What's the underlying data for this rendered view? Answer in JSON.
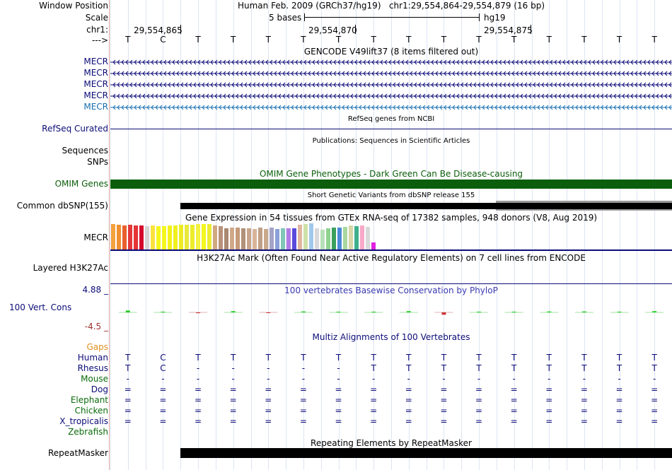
{
  "header": {
    "window_position_label": "Window Position",
    "assembly": "Human Feb. 2009 (GRCh37/hg19)",
    "position": "chr1:29,554,864-29,554,879 (16 bp)",
    "scale_label": "Scale",
    "scale_text": "5 bases",
    "scale_db": "hg19",
    "chrom_label": "chr1:",
    "coord_ticks": [
      "29,554,865",
      "29,554,870",
      "29,554,875"
    ],
    "strand_label": "--->"
  },
  "bases": [
    "T",
    "C",
    "T",
    "T",
    "T",
    "T",
    "T",
    "T",
    "T",
    "T",
    "T",
    "T",
    "T",
    "T",
    "T",
    "T"
  ],
  "gencode": {
    "title": "GENCODE V49lift37 (8 items filtered out)",
    "items": [
      "MECR",
      "MECR",
      "MECR",
      "MECR",
      "MECR"
    ],
    "color": "#0c0c78",
    "last_color": "#1a6fb0"
  },
  "refseq": {
    "title": "RefSeq genes from NCBI",
    "label": "RefSeq Curated",
    "color": "#0c0c78"
  },
  "publications": {
    "title": "Publications: Sequences in Scientific Articles",
    "label1": "Sequences",
    "label2": "SNPs"
  },
  "omim": {
    "title": "OMIM Gene Phenotypes - Dark Green Can Be Disease-causing",
    "label": "OMIM Genes",
    "color": "#0b5e0b"
  },
  "dbsnp": {
    "title": "Short Genetic Variants from dbSNP release 155",
    "label": "Common dbSNP(155)"
  },
  "gtex": {
    "title": "Gene Expression in 54 tissues from GTEx RNA-seq of 17382 samples, 948 donors (V8, Aug 2019)",
    "label": "MECR",
    "colors": [
      "#f4a23e",
      "#ef8f30",
      "#e8602a",
      "#e2383a",
      "#e53535",
      "#d60a2e",
      "#d4d4d4",
      "#fbe13e",
      "#f4f71d",
      "#f4f71d",
      "#f3f21a",
      "#f0f020",
      "#ecec22",
      "#e8e83a",
      "#ecec2b",
      "#f2f23f",
      "#f4f71d",
      "#eded33",
      "#d0a880",
      "#b8917a",
      "#a98772",
      "#cfa888",
      "#c49a7a",
      "#b09078",
      "#c8a58a",
      "#d8b49a",
      "#bfa087",
      "#c9a88c",
      "#a3a3c6",
      "#8aa0d8",
      "#7fc6b8",
      "#b07be8",
      "#5a4bdc",
      "#e0b6a0",
      "#cfe0a8",
      "#a0c8ea",
      "#d8d8d8",
      "#b7e0ba",
      "#8fd28f",
      "#3aa05e",
      "#4a8ad8",
      "#a8d8a0",
      "#d6d6a8",
      "#3fb08b",
      "#f8a8c8",
      "#d8d8d8",
      "#e020e0"
    ],
    "heights": [
      36,
      35,
      34,
      35,
      34,
      34,
      33,
      34,
      33,
      33,
      34,
      34,
      35,
      35,
      35,
      36,
      36,
      36,
      34,
      33,
      30,
      31,
      31,
      30,
      30,
      29,
      31,
      29,
      31,
      29,
      30,
      30,
      30,
      35,
      36,
      37,
      30,
      28,
      30,
      31,
      31,
      32,
      34,
      33,
      34,
      32,
      10
    ]
  },
  "h3k27ac": {
    "title": "H3K27Ac Mark (Often Found Near Active Regulatory Elements) on 7 cell lines from ENCODE",
    "label": "Layered H3K27Ac"
  },
  "phylop": {
    "title": "100 vertebrates Basewise Conservation by PhyloP",
    "label": "100 Vert. Cons",
    "max": "4.88 _",
    "min": "-4.5 _",
    "values": [
      1.2,
      0.3,
      -0.5,
      0.8,
      -0.4,
      0.6,
      0.4,
      0.4,
      0.8,
      -1.5,
      0.3,
      0.1,
      0.6,
      0.6,
      0.0,
      0.8
    ]
  },
  "multiz": {
    "title": "Multiz Alignments of 100 Vertebrates",
    "gaps_label": "Gaps",
    "species": [
      {
        "name": "Human",
        "color": "#0c0c78",
        "row": [
          "T",
          "C",
          "T",
          "T",
          "T",
          "T",
          "T",
          "T",
          "T",
          "T",
          "T",
          "T",
          "T",
          "T",
          "T",
          "T"
        ]
      },
      {
        "name": "Rhesus",
        "color": "#0c0c78",
        "row": [
          "T",
          "C",
          "-",
          "-",
          "-",
          "-",
          "-",
          "T",
          "T",
          "T",
          "T",
          "T",
          "T",
          "T",
          "T",
          "T"
        ]
      },
      {
        "name": "Mouse",
        "color": "#0b6b0b",
        "row": [
          "-",
          "-",
          "-",
          "-",
          "-",
          "-",
          "-",
          "-",
          "-",
          "-",
          "-",
          "-",
          "-",
          "-",
          "-",
          "-"
        ]
      },
      {
        "name": "Dog",
        "color": "#0c0c78",
        "row": [
          "=",
          "=",
          "=",
          "=",
          "=",
          "=",
          "=",
          "=",
          "=",
          "=",
          "=",
          "=",
          "=",
          "=",
          "=",
          "="
        ]
      },
      {
        "name": "Elephant",
        "color": "#0b6b0b",
        "row": [
          "=",
          "=",
          "=",
          "=",
          "=",
          "=",
          "=",
          "=",
          "=",
          "=",
          "=",
          "=",
          "=",
          "=",
          "=",
          "="
        ]
      },
      {
        "name": "Chicken",
        "color": "#0b6b0b",
        "row": [
          "=",
          "=",
          "=",
          "=",
          "=",
          "=",
          "=",
          "=",
          "=",
          "=",
          "=",
          "=",
          "=",
          "=",
          "=",
          "="
        ]
      },
      {
        "name": "X_tropicalis",
        "color": "#0c0c78",
        "row": [
          "=",
          "=",
          "=",
          "=",
          "=",
          "=",
          "=",
          "=",
          "=",
          "=",
          "=",
          "=",
          "=",
          "=",
          "=",
          "="
        ]
      },
      {
        "name": "Zebrafish",
        "color": "#0b6b0b",
        "row": []
      }
    ]
  },
  "repeatmasker": {
    "title": "Repeating Elements by RepeatMasker",
    "label": "RepeatMasker"
  }
}
